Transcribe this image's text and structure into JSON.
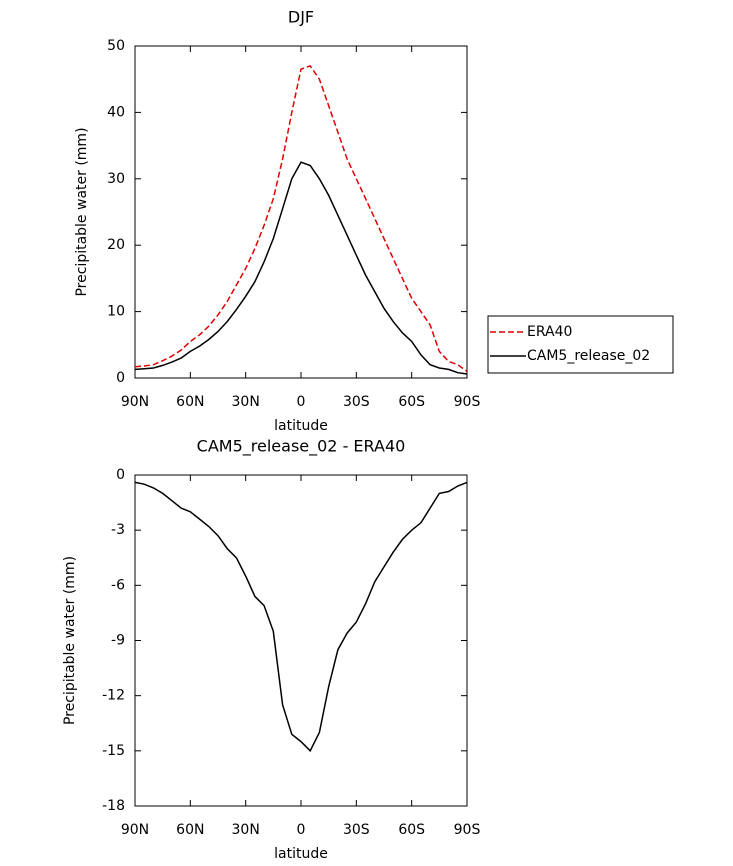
{
  "chart_data": [
    {
      "type": "line",
      "title": "DJF",
      "xlabel": "latitude",
      "ylabel": "Precipitable water (mm)",
      "x": [
        90,
        85,
        80,
        75,
        70,
        65,
        60,
        55,
        50,
        45,
        40,
        35,
        30,
        25,
        20,
        15,
        10,
        5,
        0,
        -5,
        -10,
        -15,
        -20,
        -25,
        -30,
        -35,
        -40,
        -45,
        -50,
        -55,
        -60,
        -65,
        -70,
        -75,
        -80,
        -85,
        -90
      ],
      "series": [
        {
          "name": "ERA40",
          "color": "#e00000",
          "dash": true,
          "values": [
            1.7,
            1.8,
            2.0,
            2.6,
            3.3,
            4.2,
            5.5,
            6.5,
            7.8,
            9.5,
            11.5,
            14,
            16.5,
            19.5,
            23,
            27,
            33,
            40,
            46.5,
            47,
            45,
            41,
            37,
            33,
            30,
            27,
            24,
            21,
            18,
            15,
            12,
            10,
            8,
            4,
            2.5,
            2,
            1
          ]
        },
        {
          "name": "CAM5_release_02",
          "color": "#000000",
          "dash": false,
          "values": [
            1.3,
            1.4,
            1.5,
            1.9,
            2.4,
            3.0,
            4.0,
            4.8,
            5.8,
            7,
            8.5,
            10.3,
            12.3,
            14.5,
            17.5,
            21,
            25.5,
            30,
            32.5,
            32,
            30,
            27.5,
            24.5,
            21.5,
            18.5,
            15.5,
            13,
            10.5,
            8.5,
            6.8,
            5.5,
            3.5,
            2,
            1.5,
            1.3,
            0.8,
            0.6
          ]
        }
      ],
      "xlim": [
        90,
        -90
      ],
      "xticks": [
        {
          "value": 90,
          "label": "90N"
        },
        {
          "value": 60,
          "label": "60N"
        },
        {
          "value": 30,
          "label": "30N"
        },
        0,
        {
          "value": -30,
          "label": "30S"
        },
        {
          "value": -60,
          "label": "60S"
        },
        {
          "value": -90,
          "label": "90S"
        }
      ],
      "ylim": [
        0,
        50
      ],
      "yticks": [
        0,
        10,
        20,
        30,
        40,
        50
      ],
      "legend": "right"
    },
    {
      "type": "line",
      "title": "CAM5_release_02 - ERA40",
      "xlabel": "latitude",
      "ylabel": "Precipitable water (mm)",
      "x": [
        90,
        85,
        80,
        75,
        70,
        65,
        60,
        55,
        50,
        45,
        40,
        35,
        30,
        25,
        20,
        15,
        10,
        5,
        0,
        -5,
        -10,
        -15,
        -20,
        -25,
        -30,
        -35,
        -40,
        -45,
        -50,
        -55,
        -60,
        -65,
        -70,
        -75,
        -80,
        -85,
        -90
      ],
      "values": [
        -0.4,
        -0.5,
        -0.7,
        -1.0,
        -1.4,
        -1.8,
        -2.0,
        -2.4,
        -2.8,
        -3.3,
        -4.0,
        -4.5,
        -5.5,
        -6.6,
        -7.1,
        -8.5,
        -12.5,
        -14.1,
        -14.5,
        -15.0,
        -14.0,
        -11.5,
        -9.5,
        -8.6,
        -8.0,
        -7.0,
        -5.8,
        -5.0,
        -4.2,
        -3.5,
        -3.0,
        -2.6,
        -1.8,
        -1.0,
        -0.9,
        -0.6,
        -0.4
      ],
      "color": "#000000",
      "xlim": [
        90,
        -90
      ],
      "xticks": [
        {
          "value": 90,
          "label": "90N"
        },
        {
          "value": 60,
          "label": "60N"
        },
        {
          "value": 30,
          "label": "30N"
        },
        0,
        {
          "value": -30,
          "label": "30S"
        },
        {
          "value": -60,
          "label": "60S"
        },
        {
          "value": -90,
          "label": "90S"
        }
      ],
      "ylim": [
        -18,
        0
      ],
      "yticks": [
        0,
        -3,
        -6,
        -9,
        -12,
        -15,
        -18
      ]
    }
  ]
}
